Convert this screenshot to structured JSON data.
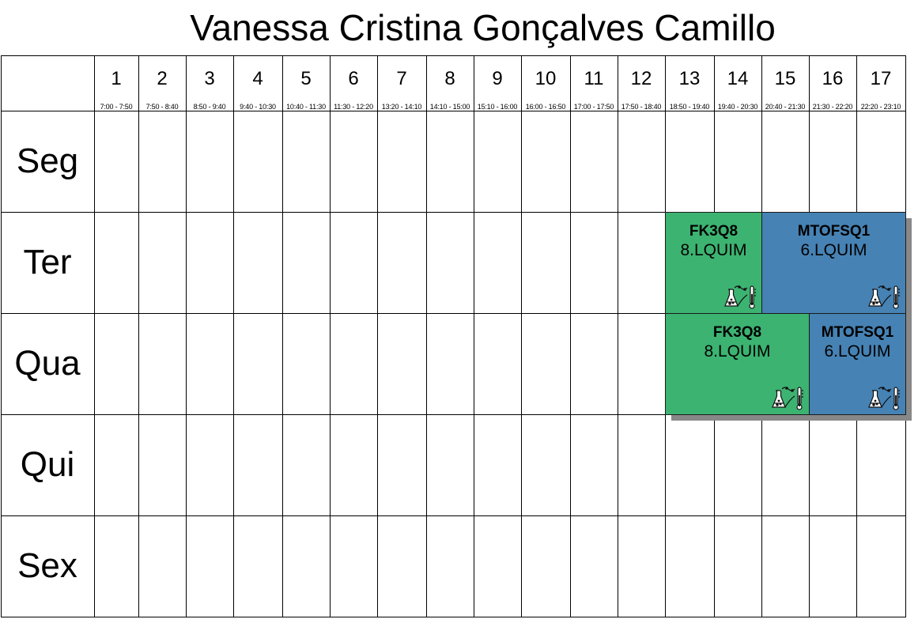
{
  "title": "Vanessa Cristina Gonçalves Camillo",
  "periods": [
    {
      "num": "1",
      "time": "7:00 - 7:50"
    },
    {
      "num": "2",
      "time": "7:50 - 8:40"
    },
    {
      "num": "3",
      "time": "8:50 - 9:40"
    },
    {
      "num": "4",
      "time": "9:40 - 10:30"
    },
    {
      "num": "5",
      "time": "10:40 - 11:30"
    },
    {
      "num": "6",
      "time": "11:30 - 12:20"
    },
    {
      "num": "7",
      "time": "13:20 - 14:10"
    },
    {
      "num": "8",
      "time": "14:10 - 15:00"
    },
    {
      "num": "9",
      "time": "15:10 - 16:00"
    },
    {
      "num": "10",
      "time": "16:00 - 16:50"
    },
    {
      "num": "11",
      "time": "17:00 - 17:50"
    },
    {
      "num": "12",
      "time": "17:50 - 18:40"
    },
    {
      "num": "13",
      "time": "18:50 - 19:40"
    },
    {
      "num": "14",
      "time": "19:40 - 20:30"
    },
    {
      "num": "15",
      "time": "20:40 - 21:30"
    },
    {
      "num": "16",
      "time": "21:30 - 22:20"
    },
    {
      "num": "17",
      "time": "22:20 - 23:10"
    }
  ],
  "days": [
    "Seg",
    "Ter",
    "Qua",
    "Qui",
    "Sex"
  ],
  "colors": {
    "green": "#3cb371",
    "blue": "#4682b4",
    "shadow": "#888888"
  },
  "lessons": [
    {
      "day": 1,
      "start_period": 13,
      "end_period": 14,
      "code": "FK3Q8",
      "room": "8.LQUIM",
      "color": "#3cb371",
      "icon": "lab-flask-icon"
    },
    {
      "day": 1,
      "start_period": 15,
      "end_period": 17,
      "code": "MTOFSQ1",
      "room": "6.LQUIM",
      "color": "#4682b4",
      "icon": "lab-flask-icon"
    },
    {
      "day": 2,
      "start_period": 13,
      "end_period": 15,
      "code": "FK3Q8",
      "room": "8.LQUIM",
      "color": "#3cb371",
      "icon": "lab-flask-icon"
    },
    {
      "day": 2,
      "start_period": 16,
      "end_period": 17,
      "code": "MTOFSQ1",
      "room": "6.LQUIM",
      "color": "#4682b4",
      "icon": "lab-flask-icon"
    }
  ]
}
